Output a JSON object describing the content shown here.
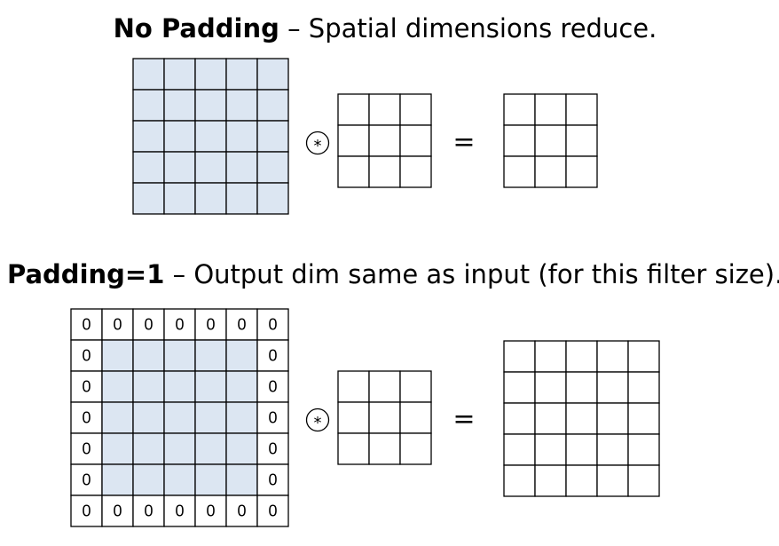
{
  "sections": [
    {
      "title_bold": "No Padding",
      "title_rest": " – Spatial dimensions reduce.",
      "operator": "*",
      "equals": "="
    },
    {
      "title_bold": "Padding=1",
      "title_rest": " – Output dim same as input (for this filter size).",
      "operator": "*",
      "equals": "=",
      "padded_grid": [
        [
          "0",
          "0",
          "0",
          "0",
          "0",
          "0",
          "0"
        ],
        [
          "0",
          null,
          null,
          null,
          null,
          null,
          "0"
        ],
        [
          "0",
          null,
          null,
          null,
          null,
          null,
          "0"
        ],
        [
          "0",
          null,
          null,
          null,
          null,
          null,
          "0"
        ],
        [
          "0",
          null,
          null,
          null,
          null,
          null,
          "0"
        ],
        [
          "0",
          null,
          null,
          null,
          null,
          null,
          "0"
        ],
        [
          "0",
          "0",
          "0",
          "0",
          "0",
          "0",
          "0"
        ]
      ]
    }
  ]
}
